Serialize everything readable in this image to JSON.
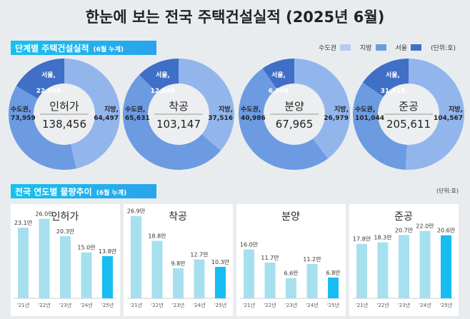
{
  "title": "한눈에 보는 전국 주택건설실적 (2025년 6월)",
  "section1": {
    "label": "단계별 주택건설실적",
    "sub": "(6월 누계)"
  },
  "section2": {
    "label": "전국 연도별 물량추이",
    "sub": "(6월 누계)"
  },
  "legend": {
    "items": [
      "수도권",
      "지방",
      "서울"
    ],
    "unit": "(단위:호)"
  },
  "unit2": "(단위:호)",
  "colors": {
    "metro": "#6c9be2",
    "local": "#92b6ec",
    "seoul": "#3f6fc6",
    "bar": "#a6e0ee",
    "bar_current": "#17bdf0"
  },
  "chart_data": [
    {
      "type": "pie",
      "title": "인허가",
      "total": "138,456",
      "slices": [
        {
          "name": "지방",
          "value": 64497,
          "label": "64,497"
        },
        {
          "name": "수도권",
          "value": 73959,
          "label": "73,959"
        },
        {
          "name": "서울",
          "value": 22898,
          "label": "22,898"
        }
      ]
    },
    {
      "type": "pie",
      "title": "착공",
      "total": "103,147",
      "slices": [
        {
          "name": "지방",
          "value": 37516,
          "label": "37,516"
        },
        {
          "name": "수도권",
          "value": 65631,
          "label": "65,631"
        },
        {
          "name": "서울",
          "value": 12866,
          "label": "12,866"
        }
      ]
    },
    {
      "type": "pie",
      "title": "분양",
      "total": "67,965",
      "slices": [
        {
          "name": "지방",
          "value": 26979,
          "label": "26,979"
        },
        {
          "name": "수도권",
          "value": 40986,
          "label": "40,986"
        },
        {
          "name": "서울",
          "value": 6558,
          "label": "6,558"
        }
      ]
    },
    {
      "type": "pie",
      "title": "준공",
      "total": "205,611",
      "slices": [
        {
          "name": "지방",
          "value": 104567,
          "label": "104,567"
        },
        {
          "name": "수도권",
          "value": 101044,
          "label": "101,044"
        },
        {
          "name": "서울",
          "value": 31618,
          "label": "31,618"
        }
      ]
    },
    {
      "type": "bar",
      "title": "인허가",
      "categories": [
        "'21년",
        "'22년",
        "'23년",
        "'24년",
        "'25년"
      ],
      "values": [
        23.1,
        26.0,
        20.3,
        15.0,
        13.8
      ],
      "labels": [
        "23.1만",
        "26.0만",
        "20.3만",
        "15.0만",
        "13.8만"
      ]
    },
    {
      "type": "bar",
      "title": "착공",
      "categories": [
        "'21년",
        "'22년",
        "'23년",
        "'24년",
        "'25년"
      ],
      "values": [
        26.9,
        18.8,
        9.8,
        12.7,
        10.3
      ],
      "labels": [
        "26.9만",
        "18.8만",
        "9.8만",
        "12.7만",
        "10.3만"
      ]
    },
    {
      "type": "bar",
      "title": "분양",
      "categories": [
        "'21년",
        "'22년",
        "'23년",
        "'24년",
        "'25년"
      ],
      "values": [
        16.0,
        11.7,
        6.6,
        11.2,
        6.8
      ],
      "labels": [
        "16.0만",
        "11.7만",
        "6.6만",
        "11.2만",
        "6.8만"
      ]
    },
    {
      "type": "bar",
      "title": "준공",
      "categories": [
        "'21년",
        "'22년",
        "'23년",
        "'24년",
        "'25년"
      ],
      "values": [
        17.8,
        18.3,
        20.7,
        22.0,
        20.6
      ],
      "labels": [
        "17.8만",
        "18.3만",
        "20.7만",
        "22.0만",
        "20.6만"
      ]
    }
  ]
}
